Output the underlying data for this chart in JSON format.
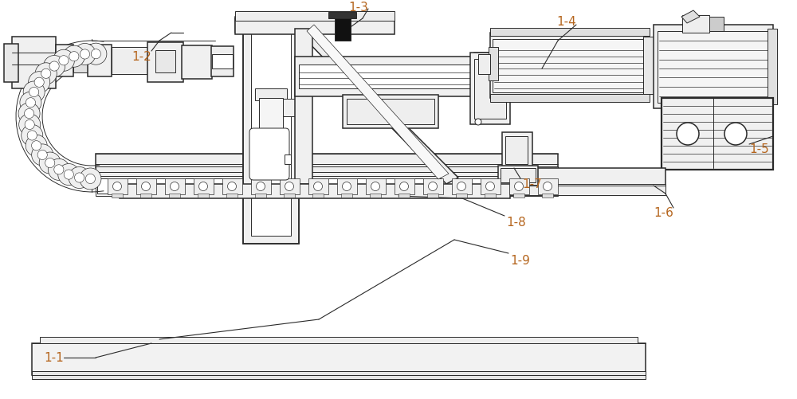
{
  "bg_color": "#ffffff",
  "line_color": "#2a2a2a",
  "label_color": "#b5651d",
  "figsize": [
    10.0,
    5.02
  ],
  "dpi": 100,
  "lw_thin": 0.7,
  "lw_med": 1.1,
  "lw_thick": 1.6,
  "label_fs": 11
}
